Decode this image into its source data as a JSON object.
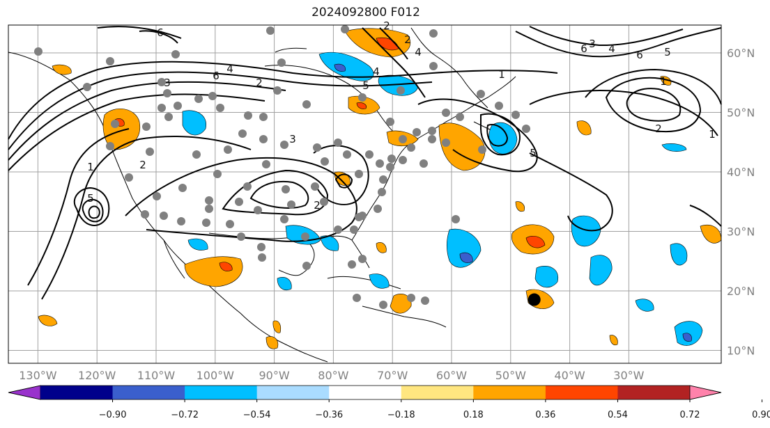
{
  "title": "2024092800 F012",
  "map": {
    "lon_range": [
      -135,
      15
    ],
    "lat_range": [
      8,
      65
    ],
    "lat_ticks": [
      {
        "value": 10,
        "label": "10°N"
      },
      {
        "value": 20,
        "label": "20°N"
      },
      {
        "value": 30,
        "label": "30°N"
      },
      {
        "value": 40,
        "label": "40°N"
      },
      {
        "value": 50,
        "label": "50°N"
      },
      {
        "value": 60,
        "label": "60°N"
      }
    ],
    "lon_ticks": [
      {
        "value": -130,
        "label": "130°W"
      },
      {
        "value": -120,
        "label": "120°W"
      },
      {
        "value": -110,
        "label": "110°W"
      },
      {
        "value": -100,
        "label": "100°W"
      },
      {
        "value": -90,
        "label": "90°W"
      },
      {
        "value": -80,
        "label": "80°W"
      },
      {
        "value": -70,
        "label": "70°W"
      },
      {
        "value": -60,
        "label": "60°W"
      },
      {
        "value": -50,
        "label": "50°W"
      },
      {
        "value": -40,
        "label": "40°W"
      },
      {
        "value": -30,
        "label": "30°W"
      }
    ],
    "marker": {
      "lon": -46,
      "lat": 19,
      "color": "#000000"
    },
    "contour_labels": [
      "6",
      "3",
      "5",
      "6",
      "4",
      "2",
      "2",
      "1",
      "2",
      "4",
      "5",
      "3",
      "1",
      "2",
      "2",
      "4",
      "5",
      "6",
      "3",
      "4",
      "6",
      "5",
      "1",
      "2",
      "1"
    ]
  },
  "colorbar": {
    "ticks": [
      "−0.90",
      "−0.72",
      "−0.54",
      "−0.36",
      "−0.18",
      "0.18",
      "0.36",
      "0.54",
      "0.72",
      "0.90"
    ],
    "colors": [
      "#9932cc",
      "#00008b",
      "#3a5fcd",
      "#00bfff",
      "#aadcff",
      "#ffffff",
      "#ffe680",
      "#ffa500",
      "#ff4500",
      "#b22222",
      "#ff82ab"
    ]
  }
}
